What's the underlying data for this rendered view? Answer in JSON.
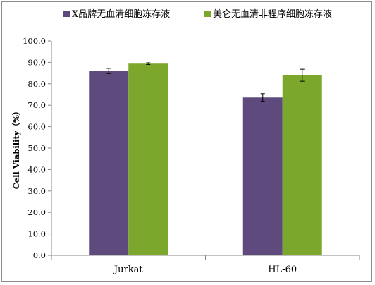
{
  "chart_data": {
    "type": "bar",
    "categories": [
      "Jurkat",
      "HL-60"
    ],
    "series": [
      {
        "name": "X品牌无血清细胞冻存液",
        "values": [
          86.0,
          73.6
        ],
        "errors": [
          1.2,
          1.8
        ],
        "color": "#5e4a7c"
      },
      {
        "name": "美仑无血清非程序细胞冻存液",
        "values": [
          89.4,
          84.0
        ],
        "errors": [
          0.4,
          2.8
        ],
        "color": "#7ba72c"
      }
    ],
    "ylabel": "Cell Viability（%）",
    "xlabel": "",
    "ylim": [
      0,
      100
    ],
    "yticks": [
      "0.0",
      "10.0",
      "20.0",
      "30.0",
      "40.0",
      "50.0",
      "60.0",
      "70.0",
      "80.0",
      "90.0",
      "100.0"
    ],
    "legend_position": "top",
    "grid": false
  }
}
